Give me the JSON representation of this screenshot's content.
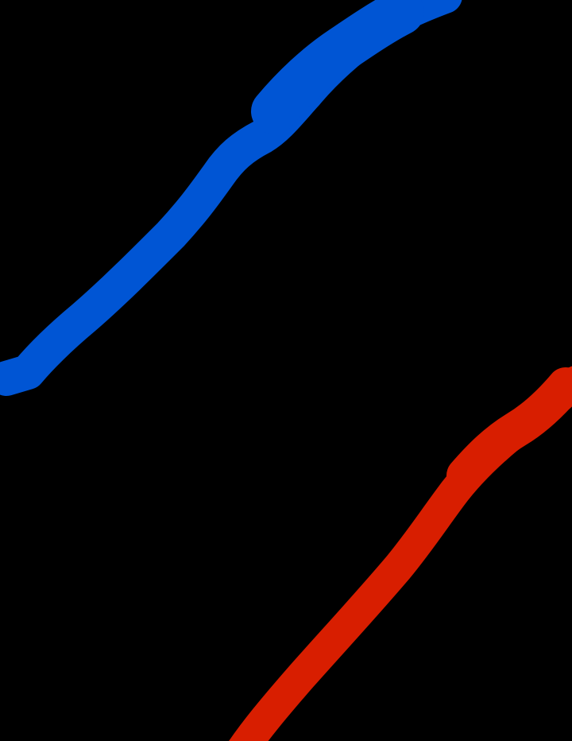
{
  "canvas": {
    "background": "#000000"
  },
  "strokes": {
    "blue": {
      "color": "#0055d4"
    },
    "red": {
      "color": "#d81e00"
    }
  }
}
